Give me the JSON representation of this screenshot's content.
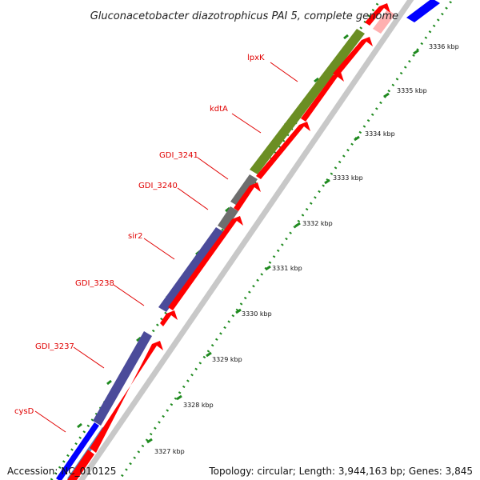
{
  "title": "Gluconacetobacter diazotrophicus PAI 5, complete genome",
  "footer": {
    "accession": "Accession: NC_010125",
    "topology": "Topology: circular; Length: 3,944,163 bp; Genes: 3,845"
  },
  "kbp_ticks": [
    "3327 kbp",
    "3328 kbp",
    "3329 kbp",
    "3330 kbp",
    "3331 kbp",
    "3332 kbp",
    "3333 kbp",
    "3334 kbp",
    "3335 kbp",
    "3336 kbp"
  ],
  "gene_labels": [
    "cysD",
    "GDI_3237",
    "GDI_3238",
    "sir2",
    "GDI_3240",
    "GDI_3241",
    "kdtA",
    "lpxK"
  ],
  "colors": {
    "cds_red": "#ff0000",
    "olive": "#6b8e23",
    "slate": "#4b4b9a",
    "gray": "#6e6e6e",
    "blue": "#0000ff",
    "pink": "#ffb0b0",
    "tick_green": "#1f8a1f",
    "label_red": "#e00000"
  }
}
